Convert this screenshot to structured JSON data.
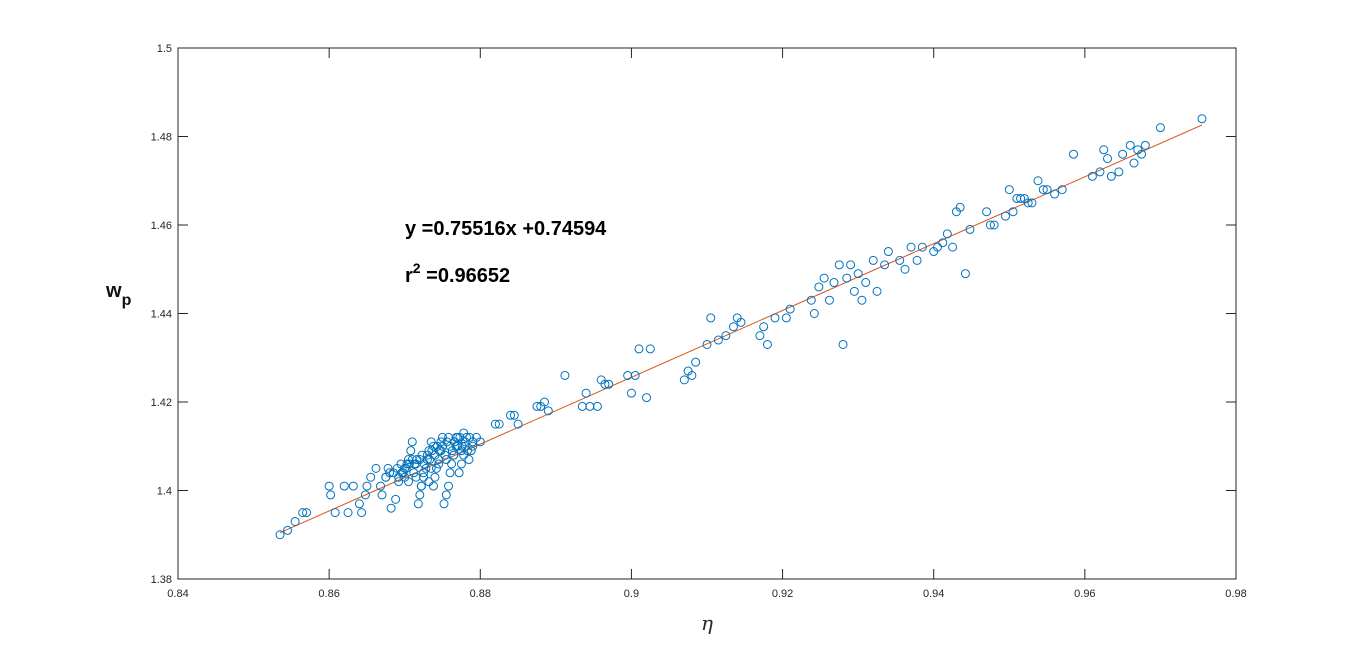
{
  "chart_data": {
    "type": "scatter",
    "title": "",
    "xlabel": "η",
    "ylabel_main": "w",
    "ylabel_sub": "p",
    "xlim": [
      0.84,
      0.98
    ],
    "ylim": [
      1.38,
      1.5
    ],
    "xticks": [
      "0.84",
      "0.86",
      "0.88",
      "0.9",
      "0.92",
      "0.94",
      "0.96",
      "0.98"
    ],
    "yticks": [
      "1.38",
      "1.4",
      "1.42",
      "1.44",
      "1.46",
      "1.48",
      "1.5"
    ],
    "grid": false,
    "marker_color": "#0072BD",
    "fit_color": "#D95319",
    "annotation": {
      "equation": "y =0.75516x +0.74594",
      "r2_base": "r",
      "r2_exp": "2",
      "r2_value": " =0.96652"
    },
    "fit": {
      "slope": 0.75516,
      "intercept": 0.74594,
      "x_start": 0.8535,
      "x_end": 0.9755
    },
    "series": [
      {
        "x": [
          0.8535,
          0.8545,
          0.8555,
          0.8565,
          0.857,
          0.86,
          0.8602,
          0.8608,
          0.862,
          0.8625,
          0.8632,
          0.864,
          0.8643,
          0.8648,
          0.865,
          0.8655,
          0.8662,
          0.8668,
          0.867,
          0.8675,
          0.8678,
          0.8682,
          0.8688,
          0.8692,
          0.8696,
          0.87,
          0.8702,
          0.8705,
          0.8708,
          0.871,
          0.8712,
          0.8715,
          0.8718,
          0.872,
          0.8722,
          0.8725,
          0.8728,
          0.873,
          0.8732,
          0.8735,
          0.8738,
          0.874,
          0.8742,
          0.8745,
          0.8748,
          0.875,
          0.8752,
          0.8755,
          0.8758,
          0.876,
          0.8762,
          0.8765,
          0.8768,
          0.877,
          0.8772,
          0.8775,
          0.8778,
          0.878,
          0.8782,
          0.8785,
          0.8788,
          0.879,
          0.8795,
          0.88,
          0.882,
          0.8825,
          0.884,
          0.8845,
          0.885,
          0.8875,
          0.888,
          0.8885,
          0.889,
          0.8912,
          0.8935,
          0.894,
          0.8945,
          0.8955,
          0.896,
          0.8965,
          0.897,
          0.8995,
          0.9,
          0.9005,
          0.901,
          0.902,
          0.9025,
          0.907,
          0.9075,
          0.908,
          0.9085,
          0.91,
          0.9105,
          0.9115,
          0.9125,
          0.9135,
          0.914,
          0.9145,
          0.917,
          0.9175,
          0.918,
          0.919,
          0.9205,
          0.921,
          0.9238,
          0.9242,
          0.9248,
          0.9255,
          0.9262,
          0.9268,
          0.9275,
          0.928,
          0.9285,
          0.929,
          0.9295,
          0.93,
          0.9305,
          0.931,
          0.932,
          0.9325,
          0.9335,
          0.934,
          0.9355,
          0.9362,
          0.937,
          0.9378,
          0.9385,
          0.94,
          0.9405,
          0.9412,
          0.9418,
          0.9425,
          0.943,
          0.9435,
          0.9442,
          0.9448,
          0.947,
          0.9475,
          0.948,
          0.9495,
          0.95,
          0.9505,
          0.951,
          0.9515,
          0.952,
          0.9525,
          0.953,
          0.9538,
          0.9545,
          0.955,
          0.956,
          0.957,
          0.9585,
          0.961,
          0.962,
          0.9625,
          0.963,
          0.9635,
          0.9645,
          0.965,
          0.966,
          0.9665,
          0.967,
          0.9675,
          0.968,
          0.97,
          0.9755
        ],
        "y": [
          1.39,
          1.391,
          1.393,
          1.395,
          1.395,
          1.401,
          1.399,
          1.395,
          1.401,
          1.395,
          1.401,
          1.397,
          1.395,
          1.399,
          1.401,
          1.403,
          1.405,
          1.401,
          1.399,
          1.403,
          1.405,
          1.396,
          1.398,
          1.402,
          1.404,
          1.403,
          1.405,
          1.407,
          1.409,
          1.411,
          1.404,
          1.406,
          1.397,
          1.399,
          1.401,
          1.403,
          1.405,
          1.407,
          1.409,
          1.411,
          1.401,
          1.403,
          1.405,
          1.407,
          1.409,
          1.412,
          1.397,
          1.399,
          1.401,
          1.404,
          1.406,
          1.408,
          1.41,
          1.412,
          1.404,
          1.406,
          1.408,
          1.41,
          1.412,
          1.407,
          1.409,
          1.411,
          1.412,
          1.411,
          1.415,
          1.415,
          1.417,
          1.417,
          1.415,
          1.419,
          1.419,
          1.42,
          1.418,
          1.426,
          1.419,
          1.422,
          1.419,
          1.419,
          1.425,
          1.424,
          1.424,
          1.426,
          1.422,
          1.426,
          1.432,
          1.421,
          1.432,
          1.425,
          1.427,
          1.426,
          1.429,
          1.433,
          1.439,
          1.434,
          1.435,
          1.437,
          1.439,
          1.438,
          1.435,
          1.437,
          1.433,
          1.439,
          1.439,
          1.441,
          1.443,
          1.44,
          1.446,
          1.448,
          1.443,
          1.447,
          1.451,
          1.433,
          1.448,
          1.451,
          1.445,
          1.449,
          1.443,
          1.447,
          1.452,
          1.445,
          1.451,
          1.454,
          1.452,
          1.45,
          1.455,
          1.452,
          1.455,
          1.454,
          1.455,
          1.456,
          1.458,
          1.455,
          1.463,
          1.464,
          1.449,
          1.459,
          1.463,
          1.46,
          1.46,
          1.462,
          1.468,
          1.463,
          1.466,
          1.466,
          1.466,
          1.465,
          1.465,
          1.47,
          1.468,
          1.468,
          1.467,
          1.468,
          1.476,
          1.471,
          1.472,
          1.477,
          1.475,
          1.471,
          1.472,
          1.476,
          1.478,
          1.474,
          1.477,
          1.476,
          1.478,
          1.482,
          1.484
        ]
      },
      {
        "cluster": true,
        "x": [
          0.8675,
          0.868,
          0.8685,
          0.869,
          0.8692,
          0.8695,
          0.8698,
          0.87,
          0.8703,
          0.8706,
          0.871,
          0.8713,
          0.8716,
          0.872,
          0.8723,
          0.8726,
          0.873,
          0.8733,
          0.8736,
          0.874,
          0.8743,
          0.8746,
          0.875,
          0.8753,
          0.8756,
          0.876,
          0.8763,
          0.8766,
          0.877,
          0.8773,
          0.8776,
          0.878,
          0.8783,
          0.8786,
          0.879,
          0.8735,
          0.8745,
          0.8755,
          0.8765,
          0.8775,
          0.8705,
          0.8715,
          0.8725,
          0.8738,
          0.8748,
          0.8758,
          0.8768,
          0.8778,
          0.8722,
          0.8732
        ],
        "y": [
          1.403,
          1.404,
          1.404,
          1.405,
          1.403,
          1.406,
          1.404,
          1.405,
          1.406,
          1.406,
          1.407,
          1.406,
          1.407,
          1.407,
          1.408,
          1.406,
          1.408,
          1.407,
          1.409,
          1.408,
          1.41,
          1.409,
          1.41,
          1.408,
          1.411,
          1.41,
          1.409,
          1.411,
          1.41,
          1.412,
          1.41,
          1.411,
          1.409,
          1.412,
          1.41,
          1.405,
          1.406,
          1.407,
          1.408,
          1.409,
          1.402,
          1.403,
          1.404,
          1.41,
          1.411,
          1.412,
          1.412,
          1.413,
          1.401,
          1.402
        ]
      }
    ]
  }
}
